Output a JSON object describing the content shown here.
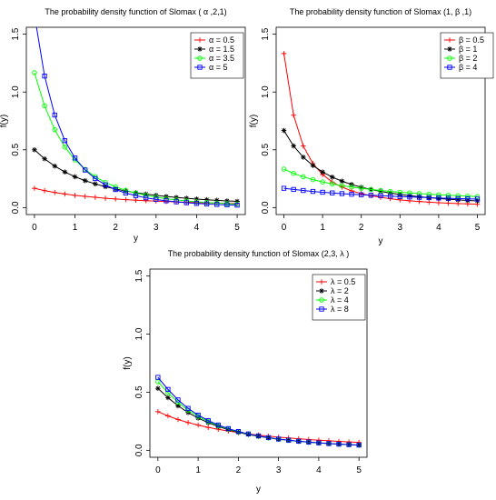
{
  "chart_data": [
    {
      "type": "line",
      "title": "The probability density function of Slomax ( α ,2,1)",
      "xlabel": "y",
      "ylabel": "f(y)",
      "xlim": [
        0,
        5
      ],
      "ylim": [
        0,
        1.5
      ],
      "x_ticks": [
        "0",
        "1",
        "2",
        "3",
        "4",
        "5"
      ],
      "y_ticks": [
        "0.0",
        "0.5",
        "1.0",
        "1.5"
      ],
      "grid": false,
      "legend_position": "top-right",
      "x": [
        0,
        0.25,
        0.5,
        0.75,
        1,
        1.25,
        1.5,
        1.75,
        2,
        2.25,
        2.5,
        2.75,
        3,
        3.25,
        3.5,
        3.75,
        4,
        4.25,
        4.5,
        4.75,
        5
      ],
      "series": [
        {
          "name": "α = 0.5",
          "color": "#ff0000",
          "marker": "plus",
          "values": [
            0.167,
            0.147,
            0.131,
            0.118,
            0.106,
            0.097,
            0.089,
            0.081,
            0.075,
            0.069,
            0.064,
            0.06,
            0.056,
            0.053,
            0.049,
            0.046,
            0.044,
            0.041,
            0.039,
            0.037,
            0.035
          ]
        },
        {
          "name": "α = 1.5",
          "color": "#000000",
          "marker": "star",
          "values": [
            0.5,
            0.422,
            0.359,
            0.308,
            0.267,
            0.233,
            0.205,
            0.181,
            0.161,
            0.144,
            0.129,
            0.117,
            0.106,
            0.096,
            0.088,
            0.081,
            0.074,
            0.068,
            0.063,
            0.058,
            0.054
          ]
        },
        {
          "name": "α = 3.5",
          "color": "#00ff00",
          "marker": "circle",
          "values": [
            1.167,
            0.88,
            0.674,
            0.524,
            0.413,
            0.33,
            0.267,
            0.218,
            0.18,
            0.15,
            0.126,
            0.106,
            0.09,
            0.077,
            0.067,
            0.058,
            0.05,
            0.044,
            0.039,
            0.034,
            0.03
          ]
        },
        {
          "name": "α = 5",
          "color": "#0000ff",
          "marker": "square",
          "values": [
            1.667,
            1.138,
            0.801,
            0.579,
            0.429,
            0.325,
            0.251,
            0.197,
            0.156,
            0.126,
            0.103,
            0.085,
            0.071,
            0.059,
            0.05,
            0.042,
            0.036,
            0.031,
            0.027,
            0.024,
            0.021
          ]
        }
      ]
    },
    {
      "type": "line",
      "title": "The probability density function of Slomax (1, β ,1)",
      "xlabel": "y",
      "ylabel": "f(y)",
      "xlim": [
        0,
        5
      ],
      "ylim": [
        0,
        1.5
      ],
      "x_ticks": [
        "0",
        "1",
        "2",
        "3",
        "4",
        "5"
      ],
      "y_ticks": [
        "0.0",
        "0.5",
        "1.0",
        "1.5"
      ],
      "grid": false,
      "legend_position": "top-right",
      "x": [
        0,
        0.25,
        0.5,
        0.75,
        1,
        1.25,
        1.5,
        1.75,
        2,
        2.25,
        2.5,
        2.75,
        3,
        3.25,
        3.5,
        3.75,
        4,
        4.25,
        4.5,
        4.75,
        5
      ],
      "series": [
        {
          "name": "β = 0.5",
          "color": "#ff0000",
          "marker": "plus",
          "values": [
            1.333,
            0.8,
            0.533,
            0.381,
            0.286,
            0.222,
            0.178,
            0.145,
            0.121,
            0.103,
            0.089,
            0.077,
            0.067,
            0.059,
            0.053,
            0.047,
            0.042,
            0.038,
            0.035,
            0.032,
            0.029
          ]
        },
        {
          "name": "β = 1",
          "color": "#000000",
          "marker": "star",
          "values": [
            0.667,
            0.533,
            0.436,
            0.364,
            0.308,
            0.264,
            0.229,
            0.2,
            0.176,
            0.157,
            0.14,
            0.126,
            0.114,
            0.103,
            0.094,
            0.086,
            0.079,
            0.073,
            0.067,
            0.062,
            0.058
          ]
        },
        {
          "name": "β = 2",
          "color": "#00ff00",
          "marker": "circle",
          "values": [
            0.333,
            0.296,
            0.267,
            0.242,
            0.222,
            0.205,
            0.19,
            0.178,
            0.167,
            0.157,
            0.148,
            0.14,
            0.133,
            0.127,
            0.121,
            0.116,
            0.111,
            0.107,
            0.103,
            0.099,
            0.095
          ]
        },
        {
          "name": "β = 4",
          "color": "#0000ff",
          "marker": "square",
          "values": [
            0.167,
            0.157,
            0.148,
            0.14,
            0.133,
            0.127,
            0.121,
            0.116,
            0.111,
            0.107,
            0.103,
            0.099,
            0.095,
            0.092,
            0.089,
            0.086,
            0.083,
            0.081,
            0.078,
            0.076,
            0.074
          ]
        }
      ]
    },
    {
      "type": "line",
      "title": "The probability density function of Slomax (2,3, λ )",
      "xlabel": "y",
      "ylabel": "f(y)",
      "xlim": [
        0,
        5
      ],
      "ylim": [
        0,
        1.5
      ],
      "x_ticks": [
        "0",
        "1",
        "2",
        "3",
        "4",
        "5"
      ],
      "y_ticks": [
        "0.0",
        "0.5",
        "1.0",
        "1.5"
      ],
      "grid": false,
      "legend_position": "top-right",
      "x": [
        0,
        0.25,
        0.5,
        0.75,
        1,
        1.25,
        1.5,
        1.75,
        2,
        2.25,
        2.5,
        2.75,
        3,
        3.25,
        3.5,
        3.75,
        4,
        4.25,
        4.5,
        4.75,
        5
      ],
      "series": [
        {
          "name": "λ = 0.5",
          "color": "#ff0000",
          "marker": "plus",
          "values": [
            0.333,
            0.296,
            0.265,
            0.239,
            0.217,
            0.197,
            0.181,
            0.166,
            0.153,
            0.141,
            0.131,
            0.122,
            0.113,
            0.106,
            0.099,
            0.093,
            0.087,
            0.082,
            0.077,
            0.072,
            0.068
          ]
        },
        {
          "name": "λ = 2",
          "color": "#000000",
          "marker": "star",
          "values": [
            0.533,
            0.453,
            0.383,
            0.325,
            0.277,
            0.238,
            0.205,
            0.178,
            0.155,
            0.136,
            0.12,
            0.107,
            0.095,
            0.086,
            0.077,
            0.07,
            0.063,
            0.058,
            0.053,
            0.049,
            0.045
          ]
        },
        {
          "name": "λ = 4",
          "color": "#00ff00",
          "marker": "circle",
          "values": [
            0.59,
            0.496,
            0.413,
            0.346,
            0.292,
            0.248,
            0.212,
            0.183,
            0.159,
            0.139,
            0.122,
            0.108,
            0.096,
            0.086,
            0.078,
            0.07,
            0.064,
            0.058,
            0.053,
            0.049,
            0.045
          ]
        },
        {
          "name": "λ = 8",
          "color": "#0000ff",
          "marker": "square",
          "values": [
            0.628,
            0.524,
            0.434,
            0.361,
            0.303,
            0.256,
            0.218,
            0.187,
            0.162,
            0.141,
            0.124,
            0.109,
            0.097,
            0.087,
            0.078,
            0.071,
            0.064,
            0.058,
            0.053,
            0.049,
            0.045
          ]
        }
      ]
    }
  ]
}
